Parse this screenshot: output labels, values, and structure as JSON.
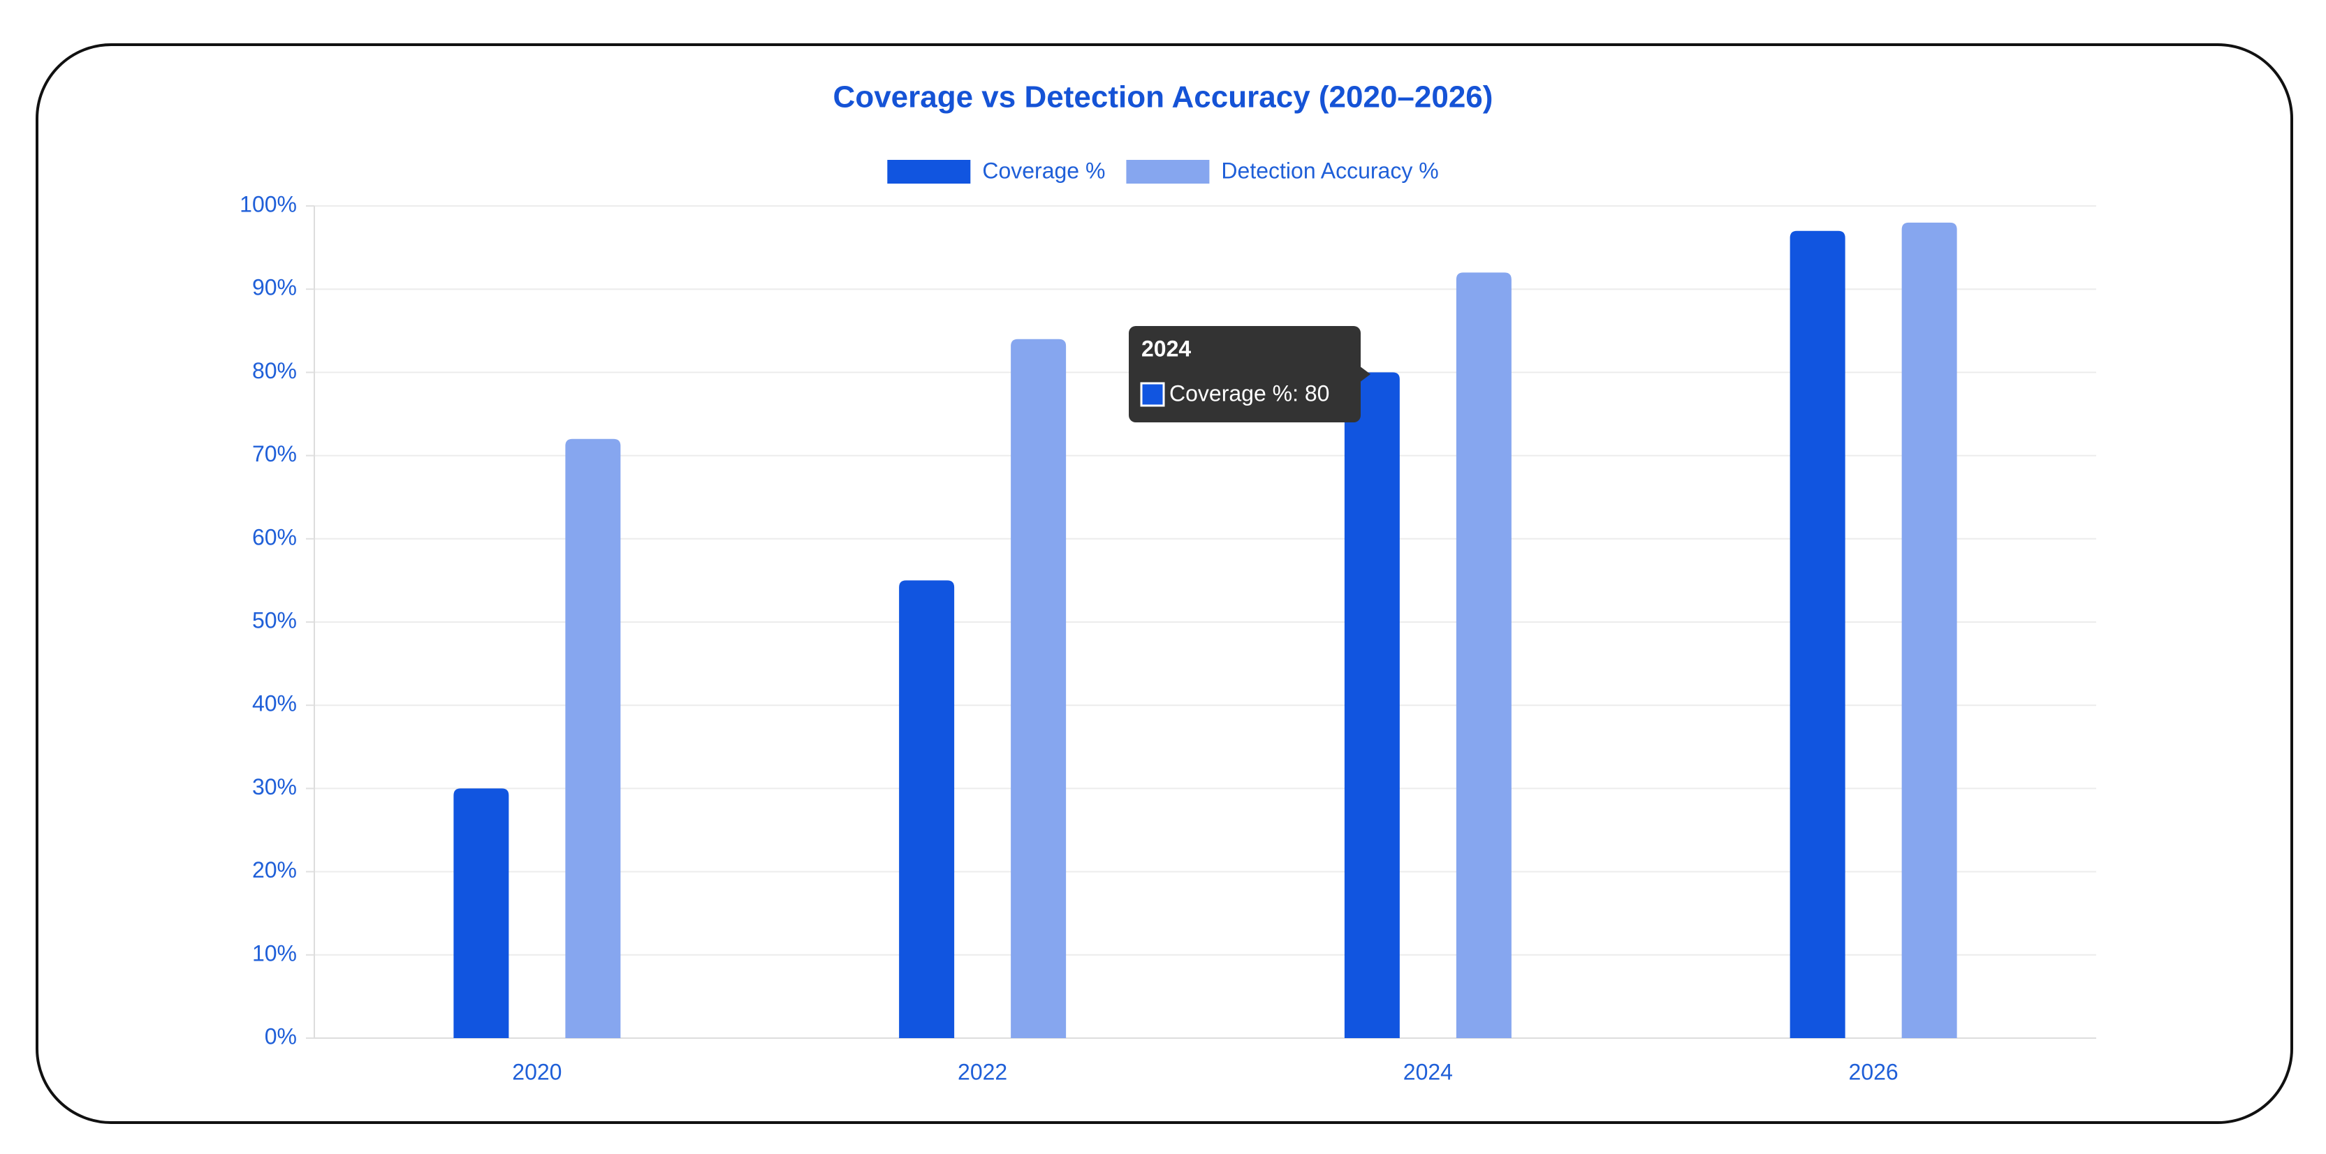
{
  "chart_data": {
    "type": "bar",
    "title": "Coverage vs Detection Accuracy (2020–2026)",
    "categories": [
      "2020",
      "2022",
      "2024",
      "2026"
    ],
    "series": [
      {
        "name": "Coverage %",
        "color": "#1155e0",
        "values": [
          30,
          55,
          80,
          97
        ]
      },
      {
        "name": "Detection Accuracy %",
        "color": "#86a6ef",
        "values": [
          72,
          84,
          92,
          98
        ]
      }
    ],
    "ylim": [
      0,
      100
    ],
    "yticks": [
      {
        "value": 0,
        "label": "0%"
      },
      {
        "value": 10,
        "label": "10%"
      },
      {
        "value": 20,
        "label": "20%"
      },
      {
        "value": 30,
        "label": "30%"
      },
      {
        "value": 40,
        "label": "40%"
      },
      {
        "value": 50,
        "label": "50%"
      },
      {
        "value": 60,
        "label": "60%"
      },
      {
        "value": 70,
        "label": "70%"
      },
      {
        "value": 80,
        "label": "80%"
      },
      {
        "value": 90,
        "label": "90%"
      },
      {
        "value": 100,
        "label": "100%"
      }
    ],
    "grid": true,
    "legend": "top",
    "tooltip": {
      "title": "2024",
      "label": "Coverage %: 80"
    }
  }
}
